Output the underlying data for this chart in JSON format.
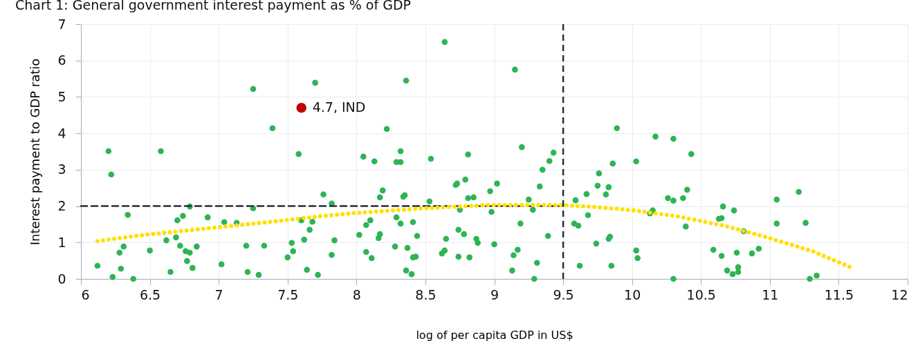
{
  "chart_data": {
    "type": "scatter",
    "title": "Chart 1: General government interest payment as % of GDP",
    "xlabel": "log of per capita GDP in US$",
    "ylabel": "Interest payment to GDP ratio",
    "xlim": [
      6,
      12
    ],
    "xticks": [
      6,
      6.5,
      7,
      7.5,
      8,
      8.5,
      9,
      9.5,
      10,
      10.5,
      11,
      11.5,
      12
    ],
    "ylim": [
      0,
      7
    ],
    "yticks": [
      0,
      1,
      2,
      3,
      4,
      5,
      6,
      7
    ],
    "grid": true,
    "marker": "circle",
    "series": [
      {
        "color": "#2db553",
        "x": [
          6.12,
          6.2,
          6.22,
          6.23,
          6.28,
          6.29,
          6.31,
          6.34,
          6.38,
          6.5,
          6.58,
          6.62,
          6.65,
          6.69,
          6.7,
          6.72,
          6.74,
          6.76,
          6.77,
          6.79,
          6.79,
          6.81,
          6.84,
          6.92,
          7.02,
          7.04,
          7.13,
          7.2,
          7.21,
          7.25,
          7.25,
          7.29,
          7.33,
          7.39,
          7.5,
          7.53,
          7.54,
          7.58,
          7.6,
          7.62,
          7.64,
          7.66,
          7.68,
          7.7,
          7.72,
          7.76,
          7.82,
          7.82,
          7.84,
          8.02,
          8.05,
          8.07,
          8.07,
          8.1,
          8.11,
          8.13,
          8.16,
          8.17,
          8.17,
          8.19,
          8.22,
          8.28,
          8.29,
          8.29,
          8.32,
          8.32,
          8.32,
          8.34,
          8.35,
          8.36,
          8.36,
          8.37,
          8.4,
          8.41,
          8.41,
          8.43,
          8.44,
          8.53,
          8.54,
          8.62,
          8.64,
          8.64,
          8.65,
          8.72,
          8.73,
          8.74,
          8.74,
          8.75,
          8.78,
          8.79,
          8.81,
          8.81,
          8.82,
          8.85,
          8.87,
          8.88,
          8.97,
          8.98,
          9.0,
          9.02,
          9.13,
          9.14,
          9.15,
          9.17,
          9.19,
          9.2,
          9.25,
          9.28,
          9.29,
          9.31,
          9.33,
          9.35,
          9.39,
          9.4,
          9.43,
          9.58,
          9.59,
          9.61,
          9.62,
          9.67,
          9.68,
          9.74,
          9.75,
          9.76,
          9.81,
          9.83,
          9.83,
          9.84,
          9.85,
          9.86,
          9.89,
          10.03,
          10.03,
          10.04,
          10.13,
          10.15,
          10.17,
          10.26,
          10.3,
          10.3,
          10.3,
          10.37,
          10.39,
          10.4,
          10.43,
          10.59,
          10.63,
          10.65,
          10.65,
          10.66,
          10.69,
          10.73,
          10.74,
          10.76,
          10.77,
          10.77,
          10.81,
          10.87,
          10.92,
          11.05,
          11.05,
          11.21,
          11.26,
          11.29,
          11.34
        ],
        "values": [
          0.36,
          3.51,
          2.87,
          0.05,
          0.72,
          0.28,
          0.89,
          1.76,
          0.0,
          0.78,
          3.51,
          1.06,
          0.19,
          1.14,
          1.61,
          0.91,
          1.73,
          0.76,
          0.49,
          0.72,
          1.99,
          0.3,
          0.89,
          1.69,
          0.4,
          1.56,
          1.54,
          0.91,
          0.19,
          5.22,
          1.94,
          0.11,
          0.91,
          4.14,
          0.59,
          0.99,
          0.76,
          3.43,
          1.61,
          1.08,
          0.25,
          1.35,
          1.57,
          5.39,
          0.11,
          2.32,
          2.07,
          0.66,
          1.06,
          1.21,
          3.36,
          1.48,
          0.74,
          1.61,
          0.57,
          3.23,
          1.12,
          1.23,
          2.24,
          2.43,
          4.12,
          0.89,
          3.21,
          1.69,
          3.21,
          3.51,
          1.52,
          2.26,
          2.3,
          5.45,
          0.23,
          0.85,
          0.13,
          1.56,
          0.59,
          0.61,
          1.18,
          2.13,
          3.3,
          0.7,
          0.78,
          6.51,
          1.1,
          2.58,
          2.62,
          1.35,
          0.61,
          1.9,
          1.23,
          2.73,
          2.22,
          3.42,
          0.59,
          2.24,
          1.1,
          0.99,
          2.41,
          1.84,
          0.95,
          2.62,
          0.23,
          0.65,
          5.75,
          0.8,
          1.52,
          3.62,
          2.18,
          1.9,
          0.0,
          0.44,
          2.54,
          3.0,
          1.18,
          3.24,
          3.47,
          1.52,
          2.16,
          1.46,
          0.36,
          2.33,
          1.75,
          0.97,
          2.56,
          2.9,
          2.32,
          1.1,
          2.52,
          1.16,
          0.36,
          3.17,
          4.14,
          3.23,
          0.78,
          0.57,
          1.8,
          1.88,
          3.91,
          2.22,
          2.15,
          3.85,
          0.0,
          2.22,
          1.44,
          2.45,
          3.43,
          0.8,
          1.65,
          1.67,
          0.63,
          1.99,
          0.23,
          0.13,
          1.88,
          0.72,
          0.32,
          0.19,
          1.31,
          0.7,
          0.83,
          2.18,
          1.52,
          2.39,
          1.54,
          0.0,
          0.09
        ]
      },
      {
        "color": "#c00000",
        "x": [
          7.6
        ],
        "values": [
          4.7
        ]
      },
      {
        "type": "line",
        "color": "#2b2b3b",
        "line_style": "dashed",
        "marker": "none",
        "x": [
          6,
          9.5
        ],
        "values": [
          2,
          2
        ]
      },
      {
        "type": "line",
        "color": "#ffe000",
        "line_style": "dotted",
        "marker": "none",
        "x": [
          6.12,
          6.44,
          6.77,
          7.1,
          7.43,
          7.76,
          7.96,
          8.49,
          8.95,
          9.49,
          9.75,
          10.02,
          10.34,
          10.67,
          10.98,
          11.31,
          11.61
        ],
        "values": [
          1.04,
          1.2,
          1.33,
          1.46,
          1.59,
          1.73,
          1.8,
          1.94,
          2.03,
          2.03,
          1.97,
          1.88,
          1.71,
          1.46,
          1.14,
          0.76,
          0.28
        ]
      }
    ],
    "ref_lines": [
      {
        "axis": "x",
        "value": 9.5,
        "color": "#2b2b3b",
        "line_style": "dashed"
      }
    ],
    "annotations": [
      {
        "text": "4.7, IND",
        "x": 7.6,
        "y": 4.7
      }
    ]
  }
}
